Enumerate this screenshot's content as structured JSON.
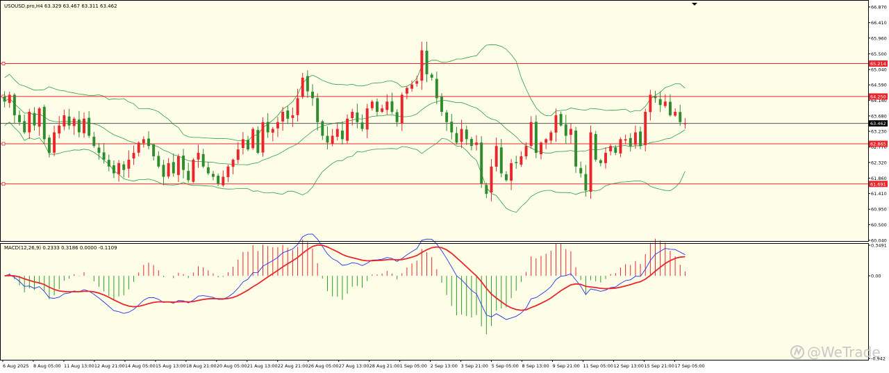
{
  "chart_data": [
    {
      "type": "candlestick",
      "symbol_info": "USOUSD.pro,H4  63.329 63.467 63.311 63.462",
      "ylim": [
        60.04,
        66.87
      ],
      "y_ticks": [
        "66.870",
        "66.410",
        "65.960",
        "65.500",
        "65.040",
        "64.590",
        "64.140",
        "63.680",
        "63.230",
        "62.770",
        "62.320",
        "61.860",
        "61.410",
        "60.950",
        "60.500",
        "60.040"
      ],
      "x_dates": [
        "6 Aug 2025",
        "8 Aug 05:00",
        "11 Aug 13:00",
        "12 Aug 21:00",
        "14 Aug 05:00",
        "15 Aug 13:00",
        "18 Aug 21:00",
        "20 Aug 05:00",
        "21 Aug 13:00",
        "22 Aug 21:00",
        "26 Aug 05:00",
        "27 Aug 13:00",
        "28 Aug 21:00",
        "1 Sep 05:00",
        "2 Sep 13:00",
        "3 Sep 21:00",
        "5 Sep 05:00",
        "8 Sep 13:00",
        "9 Sep 21:00",
        "11 Sep 05:00",
        "12 Sep 13:00",
        "15 Sep 21:00",
        "17 Sep 05:00"
      ],
      "levels": [
        {
          "label": "65.214",
          "value": 65.214,
          "color": "#e8262c"
        },
        {
          "label": "64.250",
          "value": 64.25,
          "color": "#e8262c"
        },
        {
          "label": "62.865",
          "value": 62.865,
          "color": "#e8262c"
        },
        {
          "label": "61.691",
          "value": 61.691,
          "color": "#e8262c"
        }
      ],
      "current_price": {
        "label": "63.462",
        "value": 63.462,
        "color": "#000000"
      },
      "bands_color": "#2e9e47",
      "up_color": "#e8262c",
      "down_color": "#2e8b2e",
      "closes": [
        64.1,
        64.3,
        63.7,
        63.5,
        63.2,
        63.8,
        63.4,
        63.9,
        63.0,
        62.6,
        63.2,
        63.4,
        63.7,
        63.4,
        63.6,
        63.2,
        63.6,
        63.1,
        62.8,
        62.6,
        62.4,
        62.2,
        62.0,
        62.3,
        62.1,
        62.4,
        62.6,
        62.9,
        63.0,
        62.8,
        62.5,
        62.2,
        61.9,
        62.3,
        62.0,
        62.5,
        62.1,
        61.8,
        62.4,
        62.6,
        62.2,
        62.0,
        61.9,
        61.7,
        61.9,
        62.2,
        62.4,
        62.7,
        63.0,
        62.7,
        63.3,
        62.6,
        63.5,
        63.2,
        63.3,
        63.5,
        63.8,
        63.6,
        63.7,
        64.2,
        64.8,
        64.4,
        64.2,
        63.5,
        63.1,
        62.9,
        63.1,
        63.3,
        63.0,
        63.6,
        63.8,
        63.5,
        63.3,
        63.9,
        64.1,
        63.8,
        63.9,
        64.1,
        63.8,
        63.5,
        64.3,
        64.5,
        64.6,
        64.7,
        65.6,
        64.9,
        64.8,
        64.2,
        63.8,
        63.5,
        63.2,
        62.9,
        63.3,
        63.0,
        62.8,
        62.9,
        61.7,
        61.4,
        62.2,
        62.8,
        62.0,
        61.8,
        62.3,
        62.3,
        62.5,
        62.8,
        63.5,
        62.6,
        62.9,
        63.0,
        63.2,
        63.7,
        63.4,
        63.1,
        63.3,
        62.2,
        62.0,
        61.5,
        63.2,
        62.4,
        62.3,
        62.6,
        62.8,
        62.6,
        63.0,
        63.0,
        62.8,
        63.2,
        62.8,
        63.8,
        64.3,
        64.2,
        64.0,
        64.1,
        63.7,
        63.8,
        63.5,
        63.46
      ],
      "macd": {
        "label": "MACD(12,26,9) 0.2333 0.3186 0.0000 -0.1109",
        "y_ticks": [
          "0.3491",
          "0.00",
          "-0.942"
        ],
        "ylim": [
          -0.942,
          0.3491
        ],
        "main_color": "#2233ee",
        "signal_color": "#e8262c",
        "hist_up_color": "#e8262c",
        "hist_down_color": "#2e9e1e"
      }
    }
  ],
  "watermark": {
    "icon": "wetrade-logo-icon",
    "text": "@WeTrade"
  }
}
